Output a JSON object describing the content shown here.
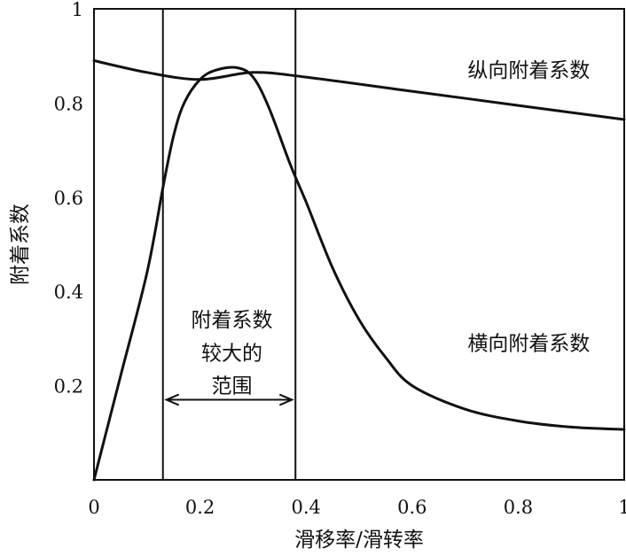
{
  "chart_data": {
    "type": "line",
    "title": "",
    "xlabel": "滑移率/滑转率",
    "ylabel": "附着系数",
    "xlim": [
      0,
      1
    ],
    "ylim": [
      0,
      1
    ],
    "x_ticks": [
      {
        "value": 0,
        "label": "0"
      },
      {
        "value": 0.2,
        "label": "0.2"
      },
      {
        "value": 0.4,
        "label": "0.4"
      },
      {
        "value": 0.6,
        "label": "0.6"
      },
      {
        "value": 0.8,
        "label": "0.8"
      },
      {
        "value": 1,
        "label": "1"
      }
    ],
    "y_ticks": [
      {
        "value": 0.2,
        "label": "0.2"
      },
      {
        "value": 0.4,
        "label": "0.4"
      },
      {
        "value": 0.6,
        "label": "0.6"
      },
      {
        "value": 0.8,
        "label": "0.8"
      },
      {
        "value": 1,
        "label": "1"
      }
    ],
    "grid": false,
    "legend": "none",
    "series": [
      {
        "name": "纵向附着系数",
        "points": [
          [
            0,
            0.89
          ],
          [
            0.1,
            0.865
          ],
          [
            0.2,
            0.85
          ],
          [
            0.3,
            0.865
          ],
          [
            0.4,
            0.855
          ],
          [
            0.6,
            0.825
          ],
          [
            0.8,
            0.795
          ],
          [
            1.0,
            0.765
          ]
        ]
      },
      {
        "name": "横向附着系数",
        "points": [
          [
            0,
            0.0
          ],
          [
            0.05,
            0.22
          ],
          [
            0.1,
            0.44
          ],
          [
            0.13,
            0.62
          ],
          [
            0.15,
            0.73
          ],
          [
            0.17,
            0.8
          ],
          [
            0.2,
            0.85
          ],
          [
            0.23,
            0.87
          ],
          [
            0.27,
            0.875
          ],
          [
            0.3,
            0.855
          ],
          [
            0.33,
            0.79
          ],
          [
            0.37,
            0.67
          ],
          [
            0.4,
            0.59
          ],
          [
            0.45,
            0.45
          ],
          [
            0.5,
            0.34
          ],
          [
            0.55,
            0.26
          ],
          [
            0.6,
            0.2
          ],
          [
            0.7,
            0.15
          ],
          [
            0.8,
            0.125
          ],
          [
            0.9,
            0.112
          ],
          [
            1.0,
            0.107
          ]
        ]
      }
    ],
    "reference_lines_x": [
      0.13,
      0.38
    ],
    "annotation": {
      "lines": [
        "附着系数",
        "较大的",
        "范围"
      ],
      "span": [
        0.13,
        0.38
      ]
    }
  }
}
